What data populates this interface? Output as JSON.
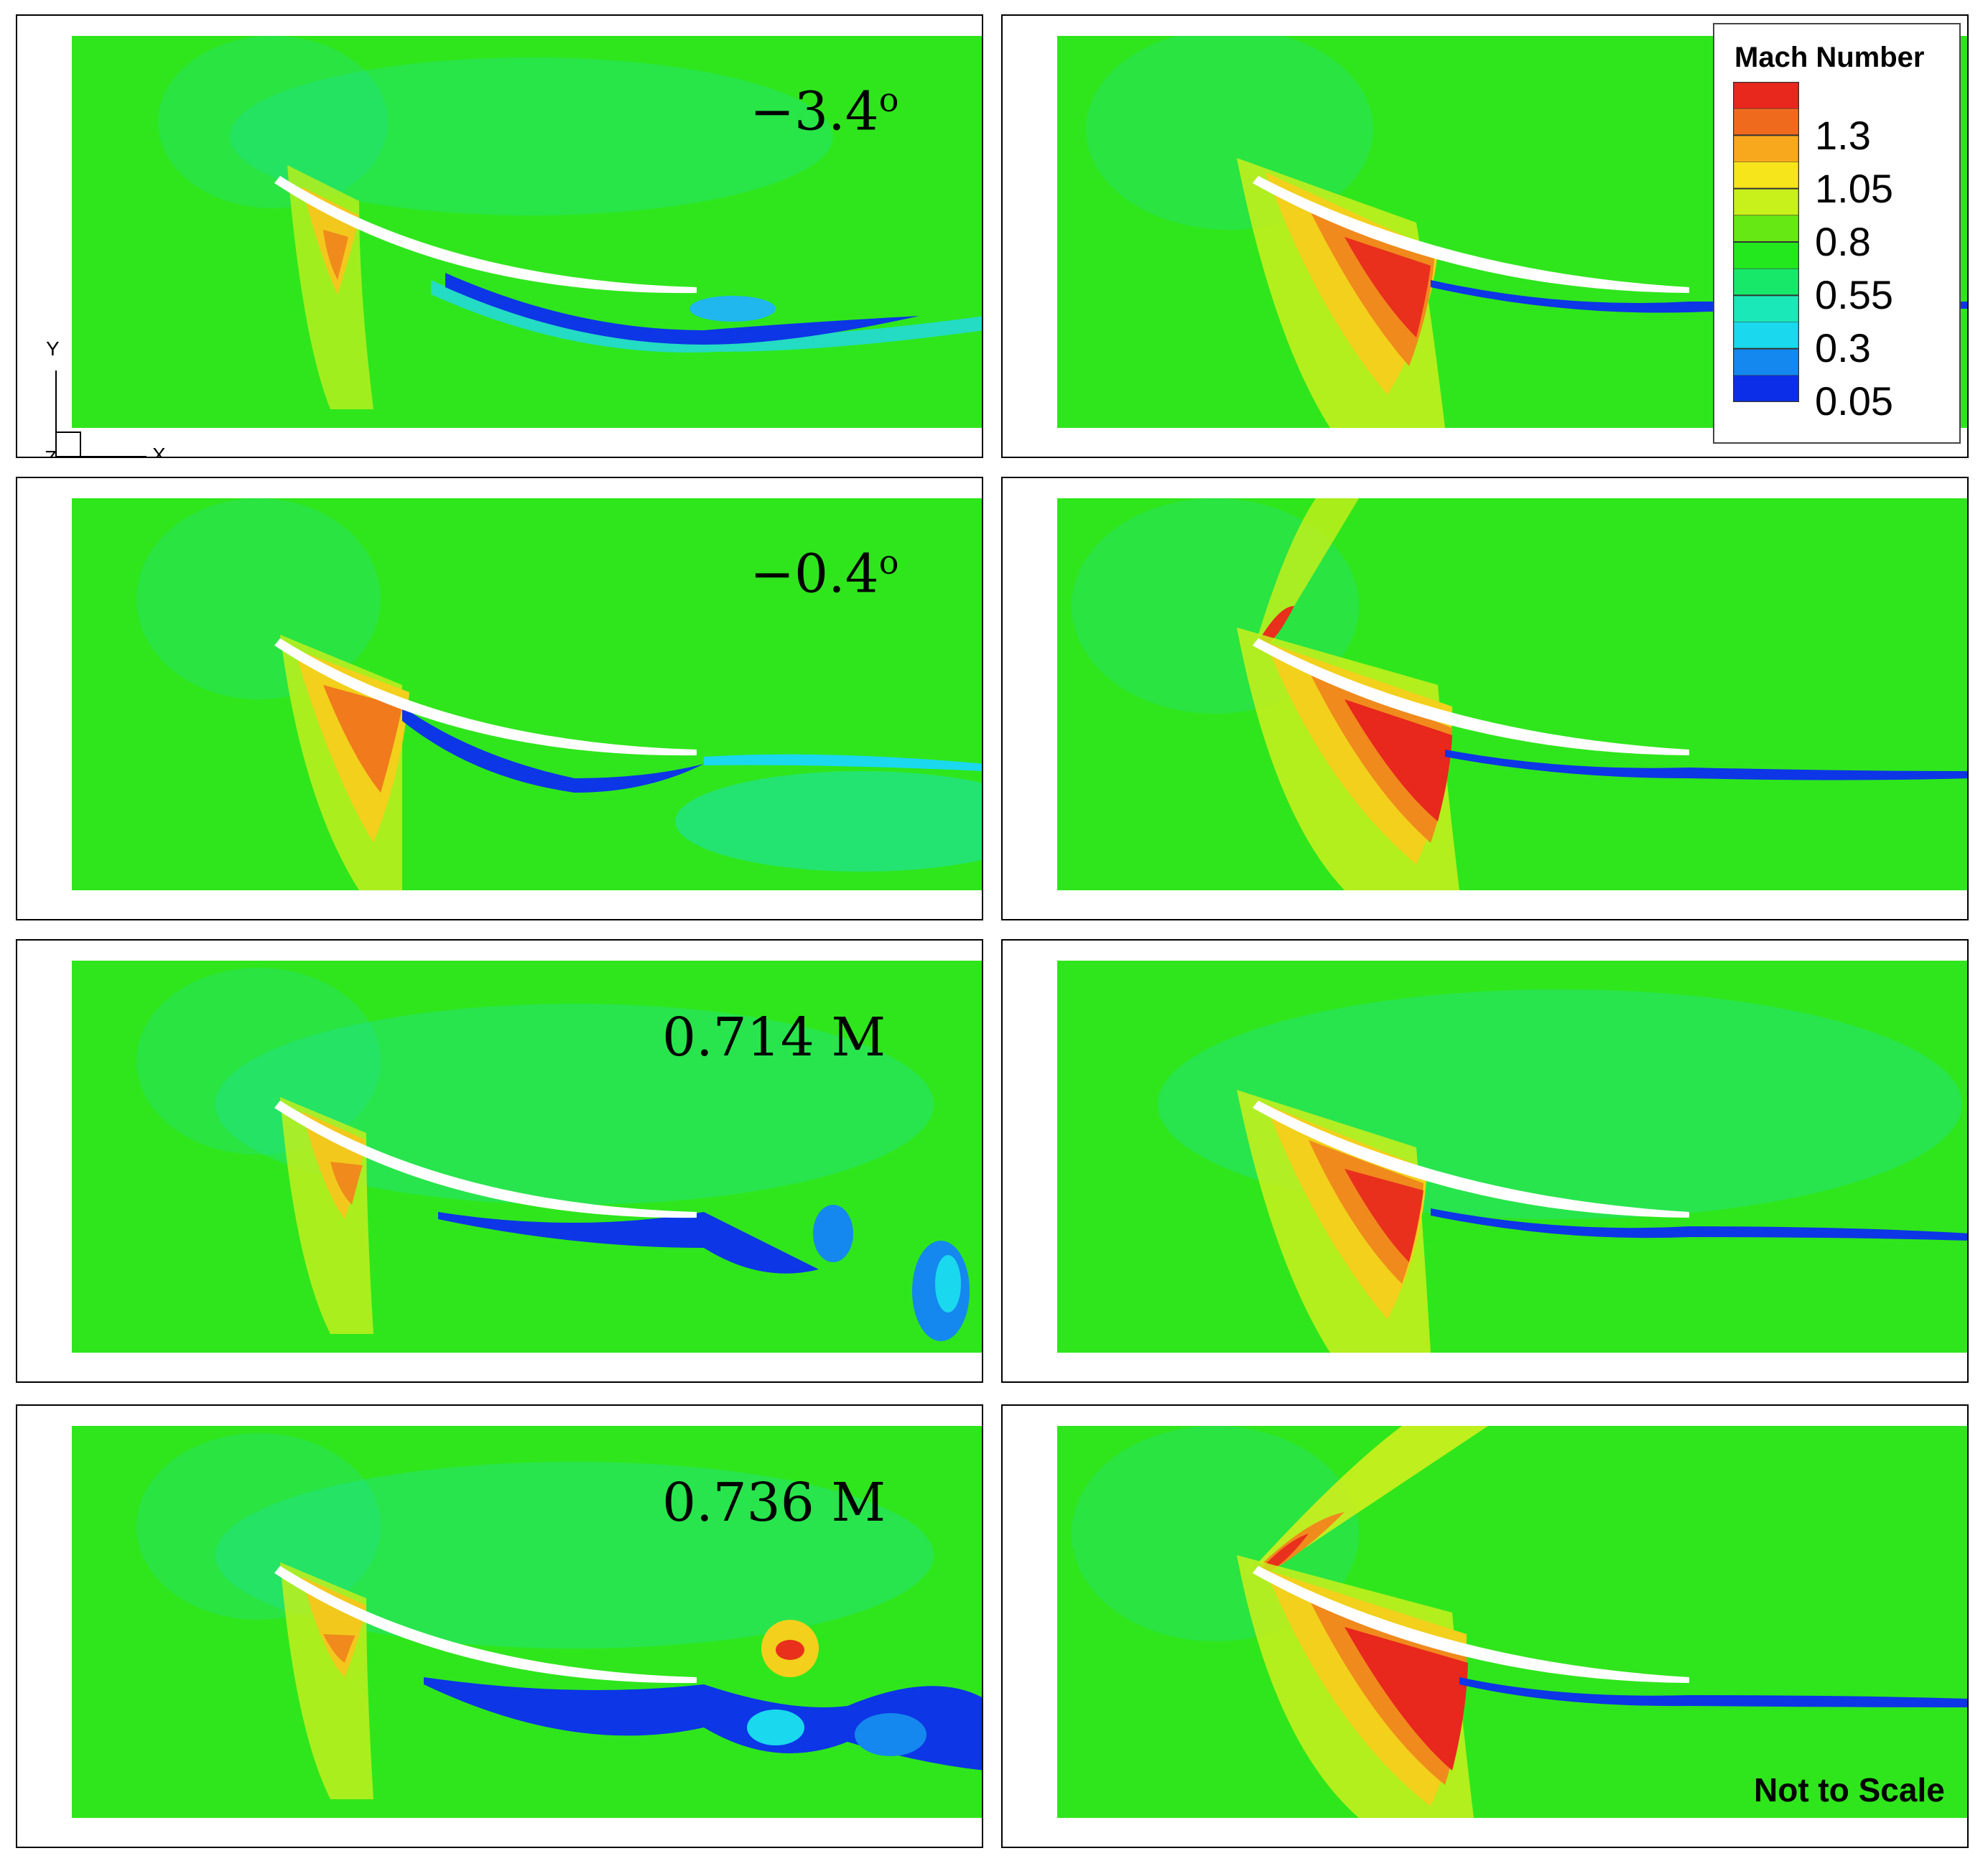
{
  "labels": {
    "p1": "−3.4",
    "p1_sup": "o",
    "p3": "−0.4",
    "p3_sup": "o",
    "p5": "0.714 M",
    "p7": "0.736 M"
  },
  "legend": {
    "title": "Mach Number",
    "ticks": [
      "1.3",
      "1.05",
      "0.8",
      "0.55",
      "0.3",
      "0.05"
    ],
    "colors": [
      "#e8271d",
      "#f06a1e",
      "#f8a81c",
      "#f7e51b",
      "#c8f01a",
      "#66e814",
      "#22e81d",
      "#18e86a",
      "#1ae8b8",
      "#1ad8ee",
      "#1488ee",
      "#0c2ee8"
    ]
  },
  "axes": {
    "y": "Y",
    "x": "X",
    "z": "Z"
  },
  "note": "Not to Scale"
}
